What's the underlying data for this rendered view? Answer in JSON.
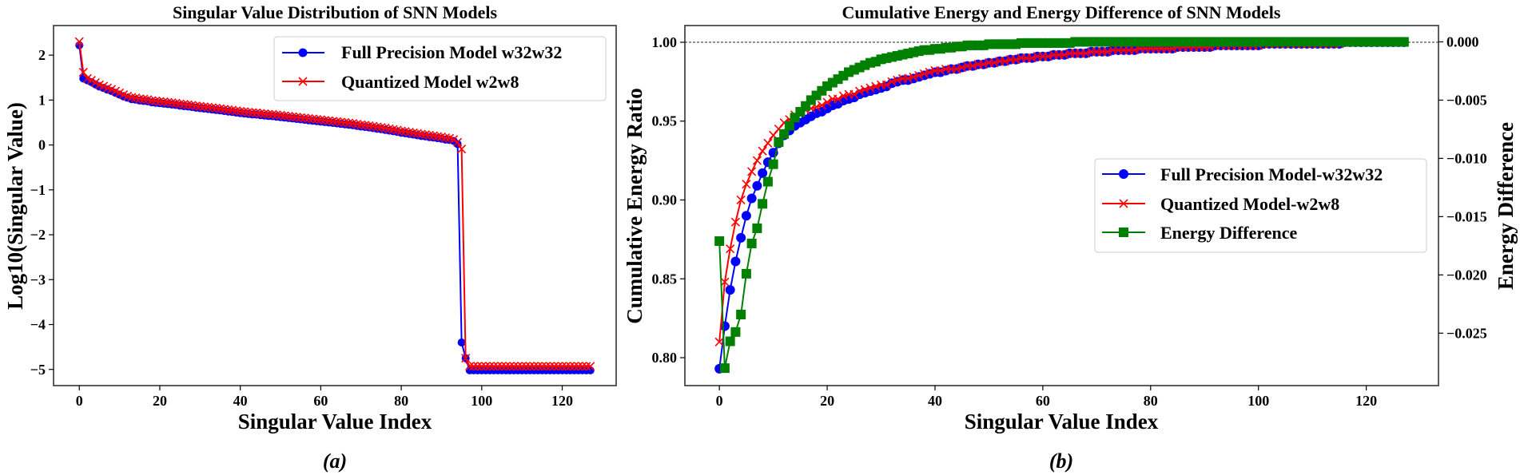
{
  "chart_data": [
    {
      "type": "line",
      "panel_caption": "(a)",
      "title": "Singular Value Distribution of SNN Models",
      "xlabel": "Singular Value Index",
      "ylabel": "Log10(Singular Value)",
      "xlim": [
        -6.4,
        133.4
      ],
      "ylim": [
        -5.36,
        2.66
      ],
      "xticks": [
        0,
        20,
        40,
        60,
        80,
        100,
        120
      ],
      "xtick_labels": [
        "0",
        "20",
        "40",
        "60",
        "80",
        "100",
        "120"
      ],
      "yticks": [
        2,
        1,
        0,
        -1,
        -2,
        -3,
        -4,
        -5
      ],
      "ytick_labels": [
        "2",
        "1",
        "0",
        "−1",
        "−2",
        "−3",
        "−4",
        "−5"
      ],
      "grid": false,
      "legend_position": "top-right",
      "series": [
        {
          "name": "Full Precision Model w32w32",
          "color": "#0000ff",
          "marker": "circle",
          "values": [
            2.22,
            1.48,
            1.44,
            1.4,
            1.35,
            1.3,
            1.27,
            1.23,
            1.2,
            1.16,
            1.12,
            1.08,
            1.05,
            1.02,
            1.01,
            0.99,
            0.98,
            0.97,
            0.95,
            0.94,
            0.93,
            0.92,
            0.91,
            0.9,
            0.89,
            0.875,
            0.865,
            0.855,
            0.845,
            0.83,
            0.82,
            0.81,
            0.8,
            0.79,
            0.78,
            0.77,
            0.755,
            0.745,
            0.735,
            0.72,
            0.71,
            0.7,
            0.69,
            0.68,
            0.675,
            0.665,
            0.655,
            0.645,
            0.64,
            0.63,
            0.62,
            0.61,
            0.6,
            0.59,
            0.58,
            0.57,
            0.56,
            0.55,
            0.54,
            0.53,
            0.52,
            0.51,
            0.5,
            0.49,
            0.48,
            0.47,
            0.46,
            0.45,
            0.44,
            0.425,
            0.41,
            0.4,
            0.39,
            0.375,
            0.36,
            0.35,
            0.335,
            0.32,
            0.305,
            0.29,
            0.27,
            0.26,
            0.245,
            0.23,
            0.215,
            0.2,
            0.19,
            0.175,
            0.165,
            0.15,
            0.14,
            0.12,
            0.11,
            0.09,
            0.02,
            -4.4,
            -4.75,
            -5.02,
            -5.02,
            -5.02,
            -5.02,
            -5.02,
            -5.02,
            -5.02,
            -5.02,
            -5.02,
            -5.02,
            -5.02,
            -5.02,
            -5.02,
            -5.02,
            -5.02,
            -5.02,
            -5.02,
            -5.02,
            -5.02,
            -5.02,
            -5.02,
            -5.02,
            -5.02,
            -5.02,
            -5.02,
            -5.02,
            -5.02,
            -5.02,
            -5.02,
            -5.02,
            -5.02
          ]
        },
        {
          "name": "Quantized Model w2w8",
          "color": "#ff0000",
          "marker": "x",
          "values": [
            2.3,
            1.62,
            1.48,
            1.44,
            1.39,
            1.34,
            1.31,
            1.27,
            1.24,
            1.2,
            1.16,
            1.12,
            1.09,
            1.06,
            1.05,
            1.03,
            1.02,
            1.01,
            0.99,
            0.98,
            0.97,
            0.96,
            0.95,
            0.94,
            0.93,
            0.915,
            0.905,
            0.895,
            0.885,
            0.87,
            0.86,
            0.85,
            0.84,
            0.83,
            0.82,
            0.81,
            0.795,
            0.785,
            0.775,
            0.76,
            0.75,
            0.74,
            0.73,
            0.72,
            0.715,
            0.705,
            0.695,
            0.685,
            0.68,
            0.67,
            0.66,
            0.65,
            0.64,
            0.63,
            0.62,
            0.61,
            0.6,
            0.59,
            0.58,
            0.57,
            0.56,
            0.55,
            0.54,
            0.53,
            0.52,
            0.51,
            0.5,
            0.49,
            0.48,
            0.465,
            0.45,
            0.44,
            0.43,
            0.415,
            0.4,
            0.39,
            0.375,
            0.36,
            0.345,
            0.33,
            0.31,
            0.3,
            0.285,
            0.27,
            0.255,
            0.24,
            0.23,
            0.215,
            0.205,
            0.19,
            0.18,
            0.16,
            0.15,
            0.12,
            0.06,
            -0.09,
            -4.75,
            -4.93,
            -4.93,
            -4.93,
            -4.93,
            -4.93,
            -4.93,
            -4.93,
            -4.93,
            -4.93,
            -4.93,
            -4.93,
            -4.93,
            -4.93,
            -4.93,
            -4.93,
            -4.93,
            -4.93,
            -4.93,
            -4.93,
            -4.93,
            -4.93,
            -4.93,
            -4.93,
            -4.93,
            -4.93,
            -4.93,
            -4.93,
            -4.93,
            -4.93,
            -4.93,
            -4.93
          ]
        }
      ]
    },
    {
      "type": "line",
      "panel_caption": "(b)",
      "title": "Cumulative Energy and Energy Difference of SNN Models",
      "xlabel": "Singular Value Index",
      "ylabel": "Cumulative Energy Ratio",
      "ylabel_right": "Energy Difference",
      "xlim": [
        -6.4,
        133.4
      ],
      "ylim": [
        0.7823,
        1.0106
      ],
      "ylim_right": [
        -0.0295,
        0.0014
      ],
      "xticks": [
        0,
        20,
        40,
        60,
        80,
        100,
        120
      ],
      "xtick_labels": [
        "0",
        "20",
        "40",
        "60",
        "80",
        "100",
        "120"
      ],
      "yticks": [
        1.0,
        0.95,
        0.9,
        0.85,
        0.8
      ],
      "ytick_labels": [
        "1.00",
        "0.95",
        "0.90",
        "0.85",
        "0.80"
      ],
      "yticks_right": [
        0.0,
        -0.005,
        -0.01,
        -0.015,
        -0.02,
        -0.025
      ],
      "ytick_labels_right": [
        "0.000",
        "−0.005",
        "−0.010",
        "−0.015",
        "−0.020",
        "−0.025"
      ],
      "reference_line": {
        "y": 1.0,
        "style": "dashed"
      },
      "grid": false,
      "legend_position": "center-right",
      "series": [
        {
          "name": "Full Precision Model-w32w32",
          "color": "#0000ff",
          "marker": "circle",
          "axis": "left",
          "values": [
            0.793,
            0.82,
            0.843,
            0.861,
            0.876,
            0.89,
            0.901,
            0.909,
            0.917,
            0.924,
            0.93,
            0.936,
            0.941,
            0.944,
            0.947,
            0.949,
            0.951,
            0.953,
            0.955,
            0.956,
            0.958,
            0.96,
            0.961,
            0.963,
            0.964,
            0.965,
            0.967,
            0.968,
            0.969,
            0.97,
            0.971,
            0.972,
            0.974,
            0.975,
            0.976,
            0.976,
            0.977,
            0.978,
            0.979,
            0.98,
            0.981,
            0.981,
            0.982,
            0.983,
            0.983,
            0.984,
            0.985,
            0.985,
            0.986,
            0.986,
            0.987,
            0.987,
            0.988,
            0.988,
            0.989,
            0.989,
            0.99,
            0.99,
            0.99,
            0.991,
            0.991,
            0.991,
            0.992,
            0.992,
            0.992,
            0.993,
            0.993,
            0.993,
            0.993,
            0.994,
            0.994,
            0.994,
            0.994,
            0.995,
            0.995,
            0.995,
            0.995,
            0.995,
            0.996,
            0.996,
            0.996,
            0.996,
            0.996,
            0.996,
            0.996,
            0.997,
            0.997,
            0.997,
            0.997,
            0.997,
            0.997,
            0.997,
            0.998,
            0.998,
            0.998,
            0.998,
            0.998,
            0.998,
            0.998,
            0.998,
            0.998,
            0.999,
            0.999,
            0.999,
            0.999,
            0.999,
            0.999,
            0.999,
            0.999,
            0.999,
            0.999,
            0.999,
            0.999,
            0.999,
            0.999,
            0.999,
            1.0,
            1.0,
            1.0,
            1.0,
            1.0,
            1.0,
            1.0,
            1.0,
            1.0,
            1.0,
            1.0,
            1.0
          ]
        },
        {
          "name": "Quantized Model-w2w8",
          "color": "#ff0000",
          "marker": "x",
          "axis": "left",
          "values": [
            0.81,
            0.848,
            0.869,
            0.886,
            0.9,
            0.91,
            0.918,
            0.925,
            0.931,
            0.936,
            0.941,
            0.945,
            0.949,
            0.951,
            0.954,
            0.955,
            0.957,
            0.958,
            0.959,
            0.96,
            0.962,
            0.964,
            0.964,
            0.966,
            0.967,
            0.967,
            0.969,
            0.97,
            0.971,
            0.972,
            0.973,
            0.973,
            0.975,
            0.976,
            0.977,
            0.977,
            0.978,
            0.979,
            0.98,
            0.981,
            0.982,
            0.982,
            0.983,
            0.983,
            0.983,
            0.984,
            0.985,
            0.985,
            0.986,
            0.986,
            0.987,
            0.987,
            0.988,
            0.988,
            0.989,
            0.989,
            0.99,
            0.99,
            0.99,
            0.991,
            0.991,
            0.991,
            0.992,
            0.992,
            0.992,
            0.993,
            0.993,
            0.993,
            0.993,
            0.994,
            0.994,
            0.994,
            0.994,
            0.995,
            0.995,
            0.995,
            0.995,
            0.995,
            0.996,
            0.996,
            0.996,
            0.996,
            0.996,
            0.996,
            0.996,
            0.997,
            0.997,
            0.997,
            0.997,
            0.997,
            0.997,
            0.997,
            0.998,
            0.998,
            0.998,
            0.998,
            0.998,
            0.998,
            0.998,
            0.998,
            0.998,
            0.999,
            0.999,
            0.999,
            0.999,
            0.999,
            0.999,
            0.999,
            0.999,
            0.999,
            0.999,
            0.999,
            0.999,
            0.999,
            0.999,
            0.999,
            1.0,
            1.0,
            1.0,
            1.0,
            1.0,
            1.0,
            1.0,
            1.0,
            1.0,
            1.0,
            1.0,
            1.0
          ]
        },
        {
          "name": "Energy Difference",
          "color": "#008000",
          "marker": "square",
          "axis": "right",
          "values": [
            -0.0171,
            -0.028,
            -0.0257,
            -0.0249,
            -0.0234,
            -0.0199,
            -0.0173,
            -0.016,
            -0.0139,
            -0.012,
            -0.0105,
            -0.0086,
            -0.0079,
            -0.0072,
            -0.0065,
            -0.006,
            -0.0055,
            -0.005,
            -0.0046,
            -0.0042,
            -0.0038,
            -0.0035,
            -0.0032,
            -0.0029,
            -0.0026,
            -0.0024,
            -0.0022,
            -0.002,
            -0.0018,
            -0.0017,
            -0.0015,
            -0.0014,
            -0.0013,
            -0.0012,
            -0.0011,
            -0.001,
            -0.0009,
            -0.0008,
            -0.0007,
            -0.0007,
            -0.0006,
            -0.0006,
            -0.0005,
            -0.0005,
            -0.0004,
            -0.0004,
            -0.0003,
            -0.0003,
            -0.0003,
            -0.0003,
            -0.0002,
            -0.0002,
            -0.0002,
            -0.0002,
            -0.0002,
            -0.0002,
            -0.0001,
            -0.0001,
            -0.0001,
            -0.0001,
            -0.0001,
            -0.0001,
            -0.0001,
            -0.0001,
            -0.0001,
            -0.0001,
            0,
            0,
            0,
            0,
            0,
            0,
            0,
            0,
            0,
            0,
            0,
            0,
            0,
            0,
            0,
            0,
            0,
            0,
            0,
            0,
            0,
            0,
            0,
            0,
            0,
            0,
            0,
            0,
            0,
            0,
            0,
            0,
            0,
            0,
            0,
            0,
            0,
            0,
            0,
            0,
            0,
            0,
            0,
            0,
            0,
            0,
            0,
            0,
            0,
            0,
            0,
            0,
            0,
            0,
            0,
            0,
            0,
            0,
            0,
            0,
            0,
            0
          ]
        }
      ]
    }
  ]
}
